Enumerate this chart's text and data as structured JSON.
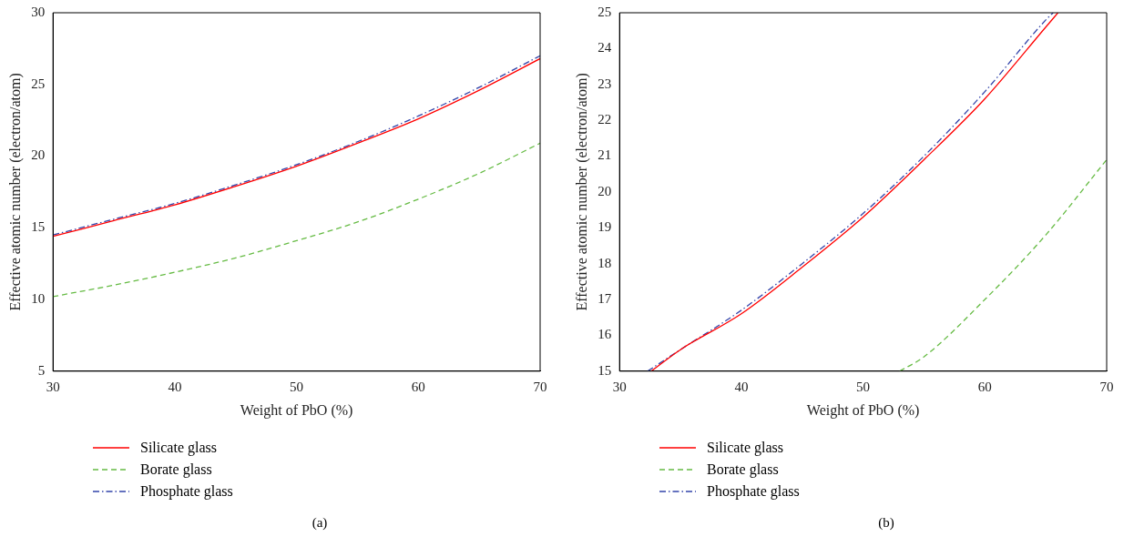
{
  "chart_data": [
    {
      "type": "line",
      "xlabel": "Weight of PbO (%)",
      "ylabel": "Effective atomic number (electron/atom)",
      "xlim": [
        30,
        70
      ],
      "ylim": [
        5,
        30
      ],
      "xticks": [
        30,
        40,
        50,
        60,
        70
      ],
      "yticks": [
        5,
        10,
        15,
        20,
        25,
        30
      ],
      "grid": false,
      "legend": "bottom left",
      "marker": "none",
      "annotations": [
        "(a)"
      ],
      "series": [
        {
          "name": "Silicate glass",
          "color": "#ff0000",
          "line_style": "solid",
          "x": [
            30,
            35,
            40,
            45,
            50,
            55,
            60,
            65,
            70
          ],
          "values": [
            14.4,
            15.5,
            16.6,
            17.9,
            19.3,
            20.9,
            22.6,
            24.6,
            26.8
          ]
        },
        {
          "name": "Borate glass",
          "color": "#66bb44",
          "line_style": "dashed",
          "x": [
            30,
            35,
            40,
            45,
            50,
            55,
            60,
            65,
            70
          ],
          "values": [
            10.2,
            11.0,
            11.9,
            12.9,
            14.1,
            15.4,
            17.0,
            18.8,
            20.9
          ]
        },
        {
          "name": "Phosphate glass",
          "color": "#3344aa",
          "line_style": "dotted",
          "x": [
            30,
            35,
            40,
            45,
            50,
            55,
            60,
            65,
            70
          ],
          "values": [
            14.5,
            15.6,
            16.7,
            18.0,
            19.4,
            21.0,
            22.8,
            24.8,
            27.0
          ]
        }
      ]
    },
    {
      "type": "line",
      "xlabel": "Weight of PbO (%)",
      "ylabel": "Effective atomic number (electron/atom)",
      "xlim": [
        30,
        70
      ],
      "ylim": [
        15,
        25
      ],
      "xticks": [
        30,
        40,
        50,
        60,
        70
      ],
      "yticks": [
        15,
        16,
        17,
        18,
        19,
        20,
        21,
        22,
        23,
        24,
        25
      ],
      "grid": false,
      "legend": "bottom left",
      "marker": "none",
      "annotations": [
        "(b)"
      ],
      "series": [
        {
          "name": "Silicate glass",
          "color": "#ff0000",
          "line_style": "solid",
          "x": [
            32.6,
            35,
            40,
            45,
            50,
            55,
            60,
            65,
            66
          ],
          "values": [
            15.0,
            15.6,
            16.6,
            17.9,
            19.3,
            20.9,
            22.6,
            24.6,
            25.0
          ]
        },
        {
          "name": "Borate glass",
          "color": "#66bb44",
          "line_style": "dashed",
          "x": [
            53,
            55,
            60,
            65,
            70
          ],
          "values": [
            15.0,
            15.4,
            17.0,
            18.8,
            20.9
          ]
        },
        {
          "name": "Phosphate glass",
          "color": "#3344aa",
          "line_style": "dotted",
          "x": [
            32.3,
            35,
            40,
            45,
            50,
            55,
            60,
            65,
            65.6
          ],
          "values": [
            15.0,
            15.6,
            16.7,
            18.0,
            19.4,
            21.0,
            22.8,
            24.8,
            25.0
          ]
        }
      ]
    }
  ]
}
